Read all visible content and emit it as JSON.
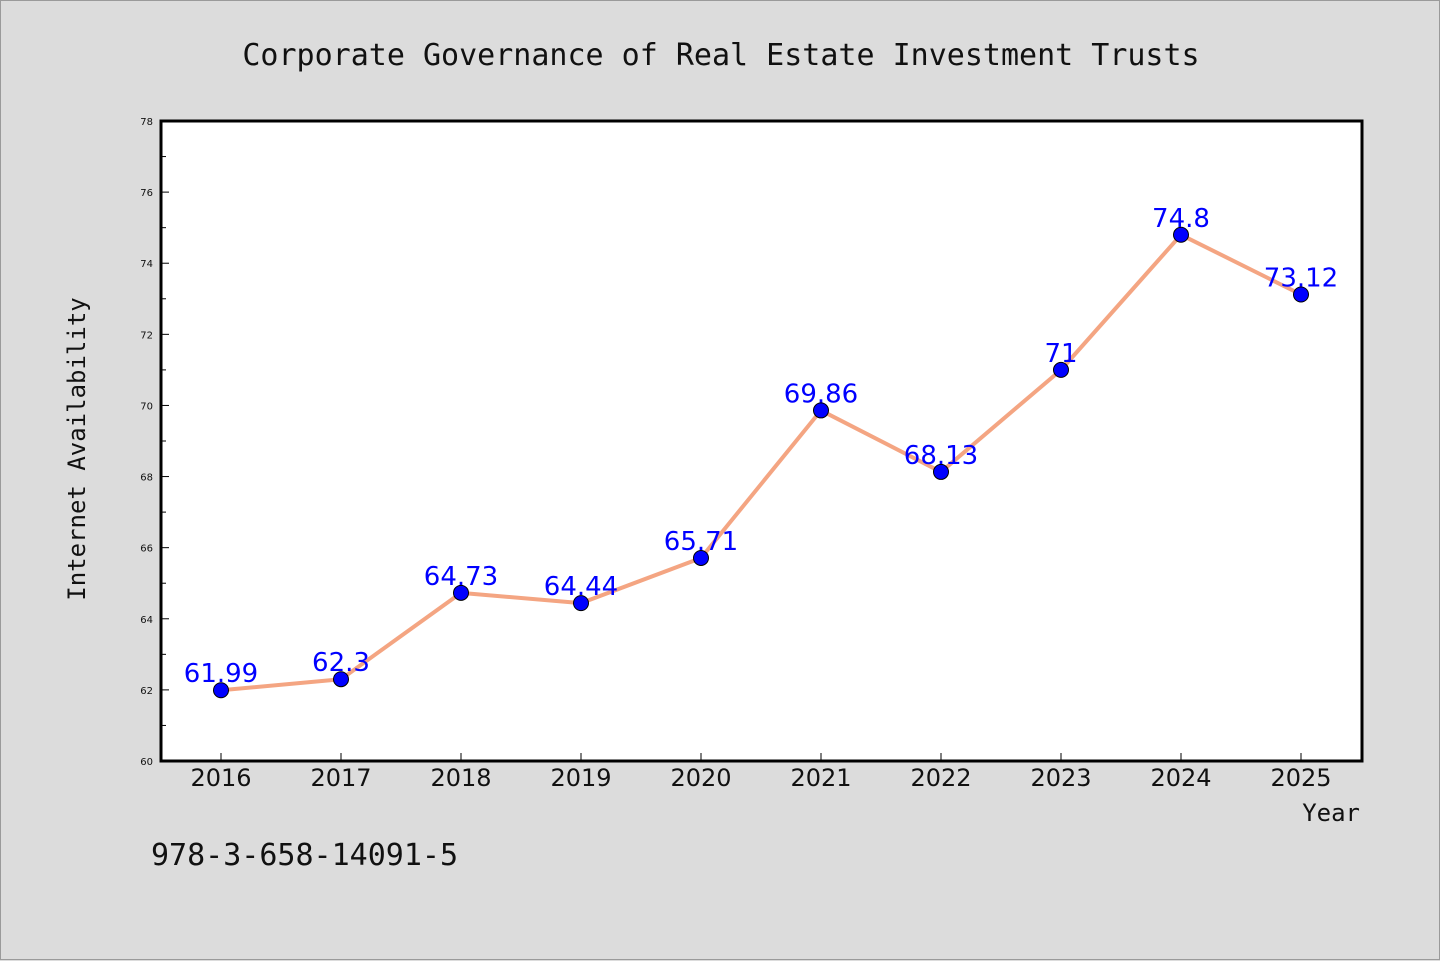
{
  "chart_data": {
    "type": "line",
    "title": "Corporate Governance of Real Estate Investment Trusts",
    "xlabel": "Year",
    "ylabel": "Internet Availability",
    "categories": [
      "2016",
      "2017",
      "2018",
      "2019",
      "2020",
      "2021",
      "2022",
      "2023",
      "2024",
      "2025"
    ],
    "series": [
      {
        "values": [
          61.99,
          62.3,
          64.73,
          64.44,
          65.71,
          69.86,
          68.13,
          71,
          74.8,
          73.12
        ],
        "labels": [
          "61.99",
          "62.3",
          "64.73",
          "64.44",
          "65.71",
          "69.86",
          "68.13",
          "71",
          "74.8",
          "73.12"
        ],
        "line_color": "#f4a582",
        "marker_color": "#0000ff"
      }
    ],
    "ylim": [
      60,
      78
    ],
    "yticks": [
      60,
      62,
      64,
      66,
      68,
      70,
      72,
      74,
      76,
      78
    ],
    "grid": false,
    "legend": "none"
  },
  "footer_text": "978-3-658-14091-5",
  "colors": {
    "background": "#dcdcdc",
    "plot_background": "#ffffff",
    "line": "#f4a582",
    "markers": "#0000ff",
    "data_labels": "#0000ff"
  }
}
